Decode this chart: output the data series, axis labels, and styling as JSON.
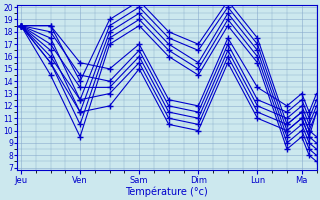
{
  "xlabel": "Température (°c)",
  "bg_color": "#cce8ee",
  "grid_color": "#88aacc",
  "line_color": "#0000cc",
  "y_min": 7,
  "y_max": 20,
  "y_ticks": [
    7,
    8,
    9,
    10,
    11,
    12,
    13,
    14,
    15,
    16,
    17,
    18,
    19,
    20
  ],
  "x_day_labels": [
    "Jeu",
    "Ven",
    "Sam",
    "Dim",
    "Lun",
    "Ma"
  ],
  "x_day_positions": [
    0,
    8,
    16,
    24,
    32,
    38
  ],
  "x_minor_step": 2,
  "xlim": [
    -0.5,
    40
  ],
  "series": [
    [
      18.5,
      18.5,
      14.0,
      19.0,
      20.5,
      18.0,
      17.0,
      20.5,
      17.5,
      10.5,
      11.5,
      10.0,
      9.5
    ],
    [
      18.5,
      17.5,
      12.5,
      18.5,
      20.0,
      17.5,
      16.5,
      20.0,
      17.0,
      10.0,
      11.0,
      9.5,
      9.0
    ],
    [
      18.5,
      16.5,
      11.5,
      18.0,
      19.5,
      17.0,
      15.5,
      19.5,
      16.5,
      9.5,
      10.5,
      9.0,
      8.5
    ],
    [
      18.5,
      15.5,
      10.5,
      17.5,
      19.0,
      16.5,
      15.0,
      19.0,
      16.0,
      9.0,
      10.0,
      8.5,
      8.0
    ],
    [
      18.5,
      14.5,
      9.5,
      17.0,
      18.5,
      16.0,
      14.5,
      18.5,
      15.5,
      8.5,
      9.5,
      8.0,
      7.5
    ],
    [
      18.5,
      18.0,
      14.5,
      14.0,
      16.5,
      12.0,
      11.5,
      17.0,
      12.5,
      11.5,
      12.5,
      11.0,
      12.5
    ],
    [
      18.5,
      17.0,
      13.5,
      13.5,
      16.0,
      11.5,
      11.0,
      16.5,
      12.0,
      11.0,
      12.0,
      10.5,
      12.0
    ],
    [
      18.5,
      16.0,
      12.5,
      13.0,
      15.5,
      11.0,
      10.5,
      16.0,
      11.5,
      10.5,
      11.5,
      10.0,
      11.5
    ],
    [
      18.5,
      18.5,
      15.5,
      15.0,
      17.0,
      12.5,
      12.0,
      17.5,
      13.5,
      12.0,
      13.0,
      11.5,
      13.0
    ],
    [
      18.5,
      15.5,
      11.5,
      12.0,
      15.0,
      10.5,
      10.0,
      15.5,
      11.0,
      10.0,
      11.0,
      9.5,
      11.5
    ]
  ],
  "series_x": [
    0,
    4,
    8,
    12,
    16,
    20,
    24,
    28,
    32,
    36,
    38,
    39,
    40
  ]
}
